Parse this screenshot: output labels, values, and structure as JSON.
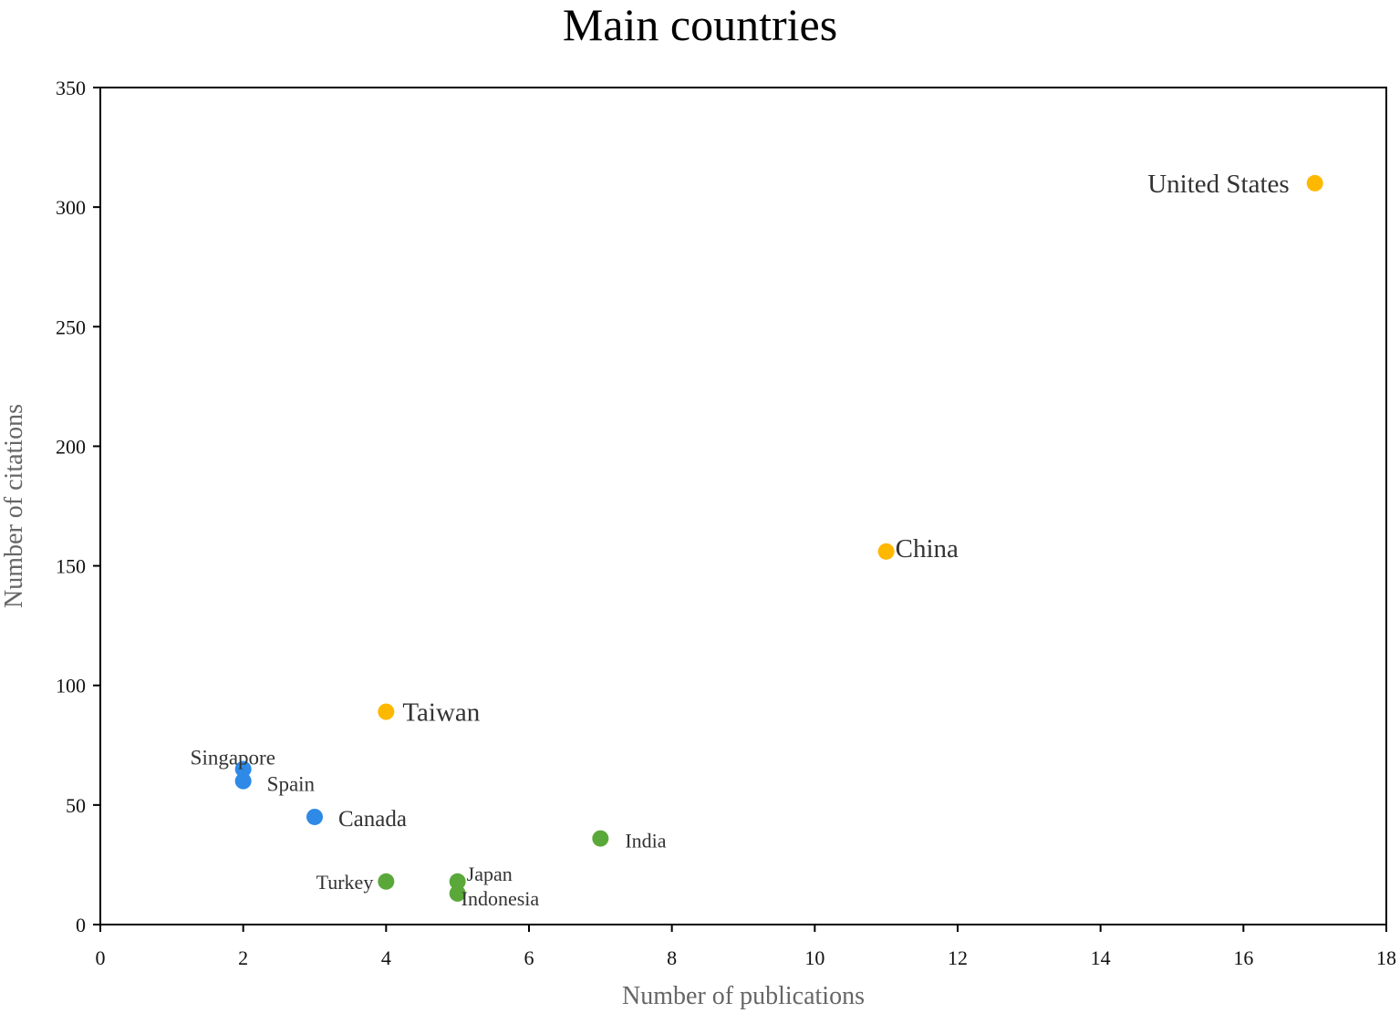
{
  "chart_data": {
    "type": "scatter",
    "title": "Main countries",
    "xlabel": "Number of publications",
    "ylabel": "Number of citations",
    "xlim": [
      0,
      18
    ],
    "ylim": [
      0,
      350
    ],
    "xticks": [
      0,
      2,
      4,
      6,
      8,
      10,
      12,
      14,
      16,
      18
    ],
    "yticks": [
      0,
      50,
      100,
      150,
      200,
      250,
      300,
      350
    ],
    "grid": false,
    "colors": {
      "orange": "#FFB800",
      "blue": "#2E8AE6",
      "green": "#5BA83A"
    },
    "points": [
      {
        "label": "United States",
        "x": 17,
        "y": 310,
        "color": "orange"
      },
      {
        "label": "China",
        "x": 11,
        "y": 156,
        "color": "orange"
      },
      {
        "label": "Taiwan",
        "x": 4,
        "y": 89,
        "color": "orange"
      },
      {
        "label": "Singapore",
        "x": 2,
        "y": 65,
        "color": "blue"
      },
      {
        "label": "Spain",
        "x": 2,
        "y": 60,
        "color": "blue"
      },
      {
        "label": "Canada",
        "x": 3,
        "y": 45,
        "color": "blue"
      },
      {
        "label": "India",
        "x": 7,
        "y": 36,
        "color": "green"
      },
      {
        "label": "Turkey",
        "x": 4,
        "y": 18,
        "color": "green"
      },
      {
        "label": "Japan",
        "x": 5,
        "y": 18,
        "color": "green"
      },
      {
        "label": "Indonesia",
        "x": 5,
        "y": 13,
        "color": "green"
      }
    ]
  }
}
